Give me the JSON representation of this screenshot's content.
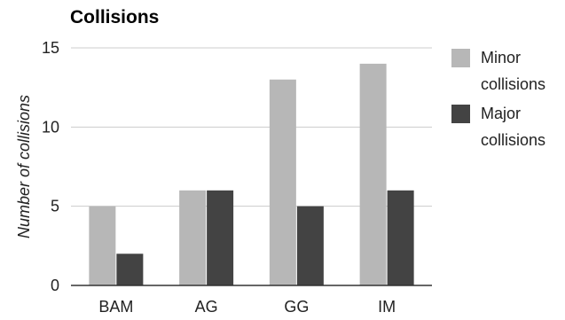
{
  "chart_data": {
    "type": "bar",
    "title": "Collisions",
    "xlabel": "",
    "ylabel": "Number of collisions",
    "categories": [
      "BAM",
      "AG",
      "GG",
      "IM"
    ],
    "series": [
      {
        "name": "Minor collisions",
        "name_lines": [
          "Minor",
          "collisions"
        ],
        "color": "#b7b7b7",
        "values": [
          5,
          6,
          13,
          14
        ]
      },
      {
        "name": "Major collisions",
        "name_lines": [
          "Major",
          "collisions"
        ],
        "color": "#434343",
        "values": [
          2,
          6,
          5,
          6
        ]
      }
    ],
    "ylim": [
      0,
      15
    ],
    "yticks": [
      0,
      5,
      10,
      15
    ],
    "grid": true,
    "legend": "right"
  }
}
